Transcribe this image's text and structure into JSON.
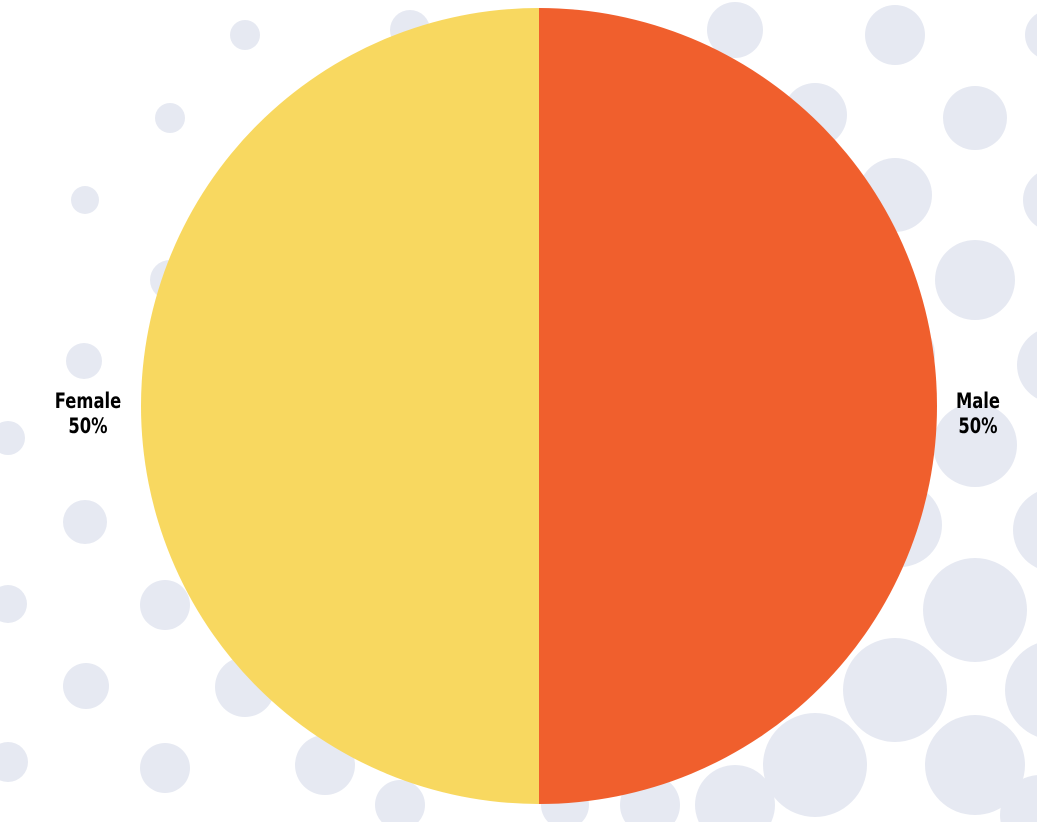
{
  "colors": {
    "background_dots": "#e6e9f2",
    "background": "#ffffff"
  },
  "chart_data": {
    "type": "pie",
    "title": "",
    "slices": [
      {
        "label": "Male",
        "value": 50,
        "percent_label": "50%",
        "color": "#f05f2d"
      },
      {
        "label": "Female",
        "value": 50,
        "percent_label": "50%",
        "color": "#f8d860"
      }
    ]
  }
}
